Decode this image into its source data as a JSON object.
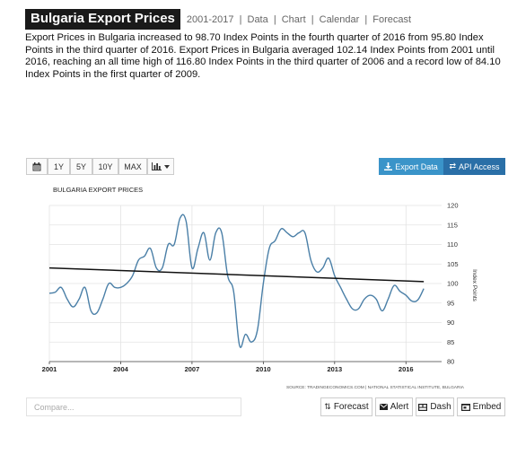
{
  "header": {
    "title": "Bulgaria Export Prices",
    "years": "2001-2017",
    "links": [
      "Data",
      "Chart",
      "Calendar",
      "Forecast"
    ]
  },
  "description": "Export Prices in Bulgaria increased to 98.70 Index Points in the fourth quarter of 2016 from 95.80 Index Points in the third quarter of 2016. Export Prices in Bulgaria averaged 102.14 Index Points from 2001 until 2016, reaching an all time high of 116.80 Index Points in the third quarter of 2006 and a record low of 84.10 Index Points in the first quarter of 2009.",
  "toolbar": {
    "calendar_icon": "calendar-icon",
    "ranges": [
      "1Y",
      "5Y",
      "10Y",
      "MAX"
    ],
    "chart_type_icon": "bar-chart-icon",
    "export_label": "Export Data",
    "api_label": "API Access",
    "colors": {
      "export": "#3a94c9",
      "api": "#2a6fa7"
    }
  },
  "chart_data": {
    "type": "line",
    "title": "BULGARIA EXPORT PRICES",
    "ylabel": "Index Points",
    "xlabel": "",
    "source": "SOURCE: TRADINGECONOMICS.COM | NATIONAL STATISTICAL INSTITUTE, BULGARIA",
    "ylim": [
      80,
      120
    ],
    "yticks": [
      80,
      85,
      90,
      95,
      100,
      105,
      110,
      115,
      120
    ],
    "xlim": [
      2001,
      2017.5
    ],
    "xticks": [
      "2001",
      "2004",
      "2007",
      "2010",
      "2013",
      "2016"
    ],
    "grid": true,
    "series": [
      {
        "color": "#4a7fa7",
        "x": [
          2001.0,
          2001.25,
          2001.5,
          2001.75,
          2002.0,
          2002.25,
          2002.5,
          2002.75,
          2003.0,
          2003.25,
          2003.5,
          2003.75,
          2004.0,
          2004.25,
          2004.5,
          2004.75,
          2005.0,
          2005.25,
          2005.5,
          2005.75,
          2006.0,
          2006.25,
          2006.5,
          2006.75,
          2007.0,
          2007.25,
          2007.5,
          2007.75,
          2008.0,
          2008.25,
          2008.5,
          2008.75,
          2009.0,
          2009.25,
          2009.5,
          2009.75,
          2010.0,
          2010.25,
          2010.5,
          2010.75,
          2011.0,
          2011.25,
          2011.5,
          2011.75,
          2012.0,
          2012.25,
          2012.5,
          2012.75,
          2013.0,
          2013.25,
          2013.5,
          2013.75,
          2014.0,
          2014.25,
          2014.5,
          2014.75,
          2015.0,
          2015.25,
          2015.5,
          2015.75,
          2016.0,
          2016.25,
          2016.5,
          2016.75
        ],
        "values": [
          97.5,
          97.8,
          99,
          96,
          94,
          96,
          99,
          93,
          92.5,
          96,
          100,
          99,
          99,
          100,
          102,
          106,
          107,
          109,
          104,
          104,
          110,
          110,
          116.8,
          116,
          104,
          109,
          113,
          106,
          113,
          113,
          102,
          98,
          84.1,
          87,
          85,
          88,
          100,
          109,
          111,
          114,
          113,
          112,
          113,
          113,
          106,
          103,
          104,
          106.5,
          102,
          99,
          96,
          93.5,
          93.5,
          96,
          97,
          96,
          93,
          96,
          99.5,
          98,
          97,
          95.5,
          95.8,
          98.7
        ]
      },
      {
        "name": "",
        "color": "#111111",
        "x": [
          2001.0,
          2016.75
        ],
        "values": [
          104.0,
          100.5
        ]
      }
    ]
  },
  "compare": {
    "placeholder": "Compare..."
  },
  "bottom_actions": [
    {
      "label": "Forecast",
      "icon": "sort-icon"
    },
    {
      "label": "Alert",
      "icon": "envelope-icon"
    },
    {
      "label": "Dash",
      "icon": "dashboard-icon"
    },
    {
      "label": "Embed",
      "icon": "embed-icon"
    }
  ]
}
